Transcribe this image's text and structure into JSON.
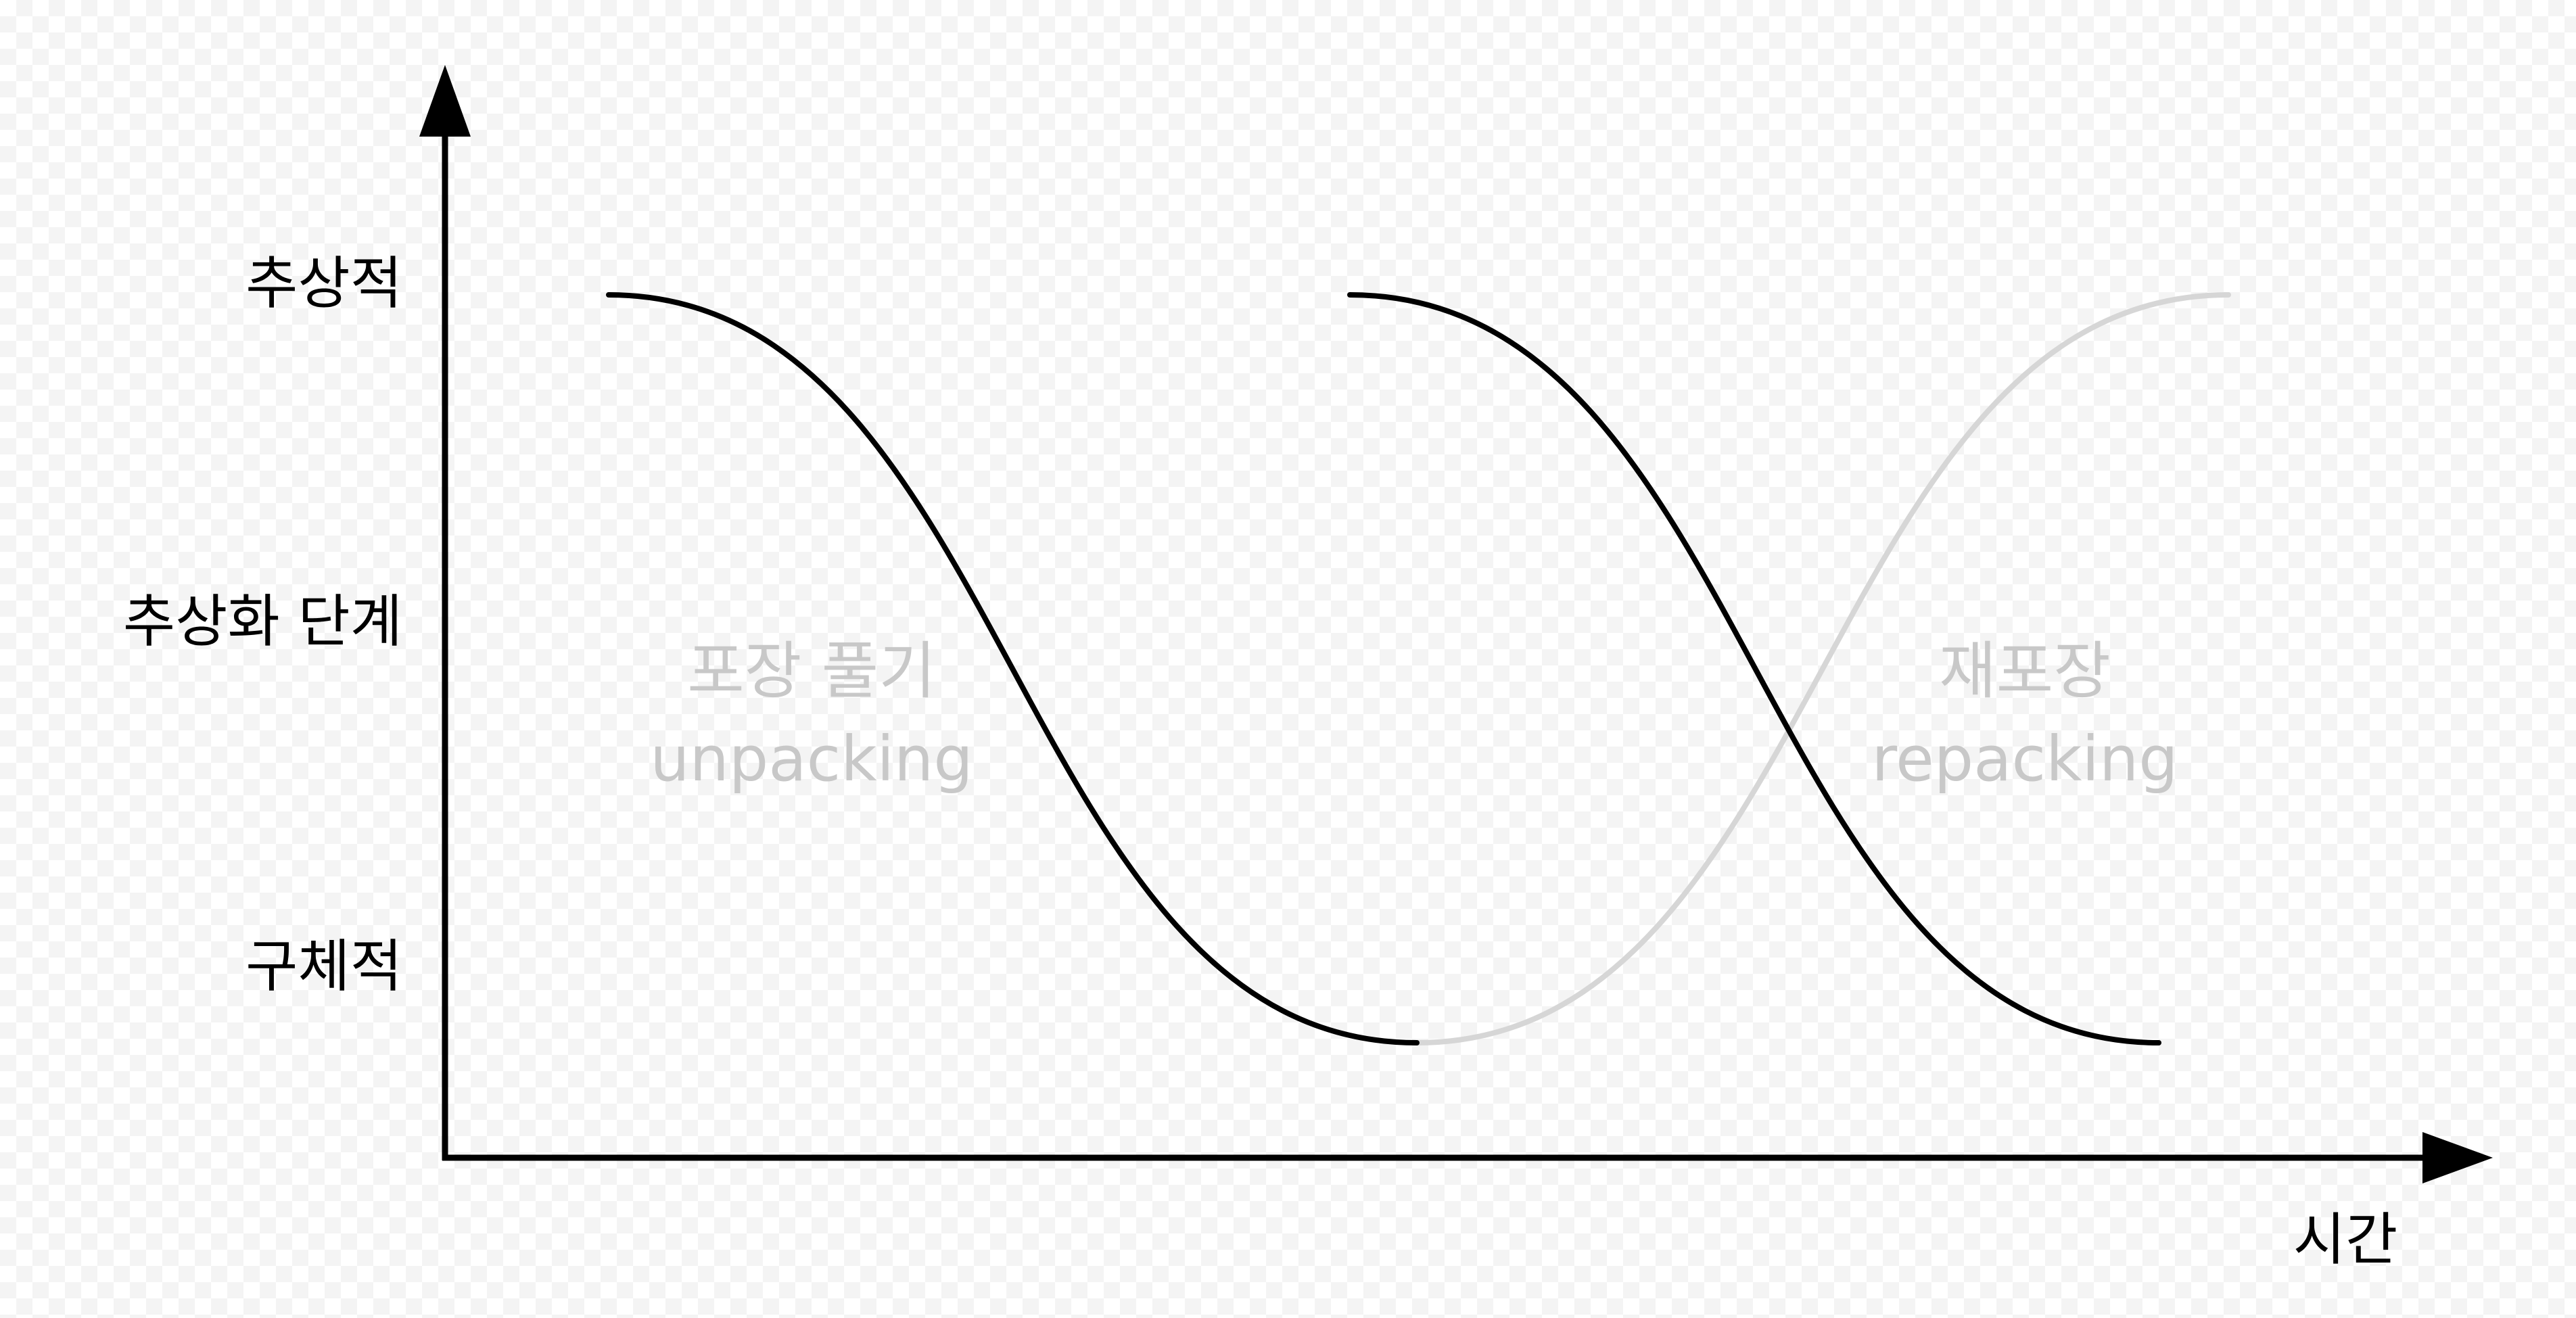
{
  "diagram": {
    "y_axis": {
      "levels": {
        "abstract": "추상적",
        "abstraction_level": "추상화 단계",
        "concrete": "구체적"
      }
    },
    "x_axis": {
      "label": "시간"
    },
    "phases": {
      "unpacking": {
        "korean": "포장 풀기",
        "english": "unpacking"
      },
      "repacking": {
        "korean": "재포장",
        "english": "repacking"
      }
    },
    "colors": {
      "axis": "#000000",
      "dark_curve": "#000000",
      "light_curve": "#d6d6d6",
      "phase_text": "#c8c8c8"
    }
  }
}
